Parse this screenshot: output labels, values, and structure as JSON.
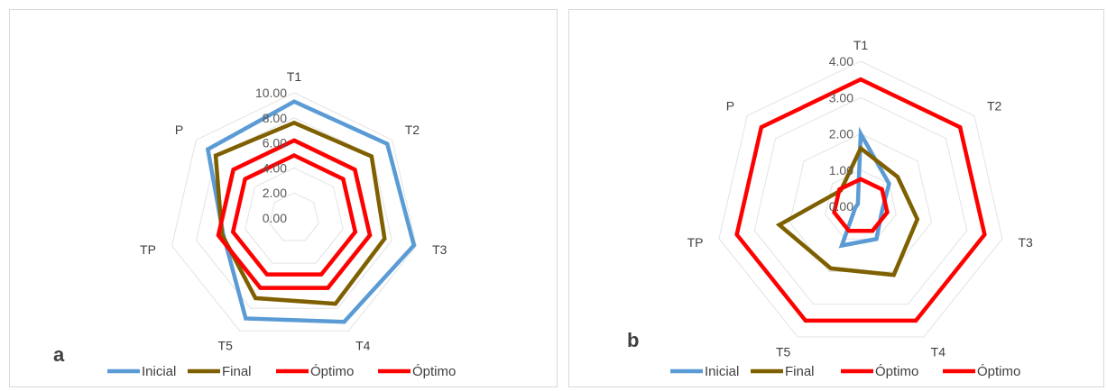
{
  "colors": {
    "inicial": "#5B9BD5",
    "final": "#7F6000",
    "optimo": "#FF0000",
    "grid": "#e3e3e3"
  },
  "chart_data": [
    {
      "type": "radar",
      "panel_label": "a",
      "axes": [
        "T1",
        "T2",
        "T3",
        "T4",
        "T5",
        "TP",
        "P"
      ],
      "ticks": [
        "0.00",
        "2.00",
        "4.00",
        "6.00",
        "8.00",
        "10.00"
      ],
      "ylim": [
        0,
        10
      ],
      "grid": true,
      "legend_position": "bottom",
      "series": [
        {
          "name": "Inicial",
          "values": [
            9.3,
            9.5,
            9.8,
            9.2,
            8.9,
            5.8,
            8.8
          ]
        },
        {
          "name": "Final",
          "values": [
            7.6,
            7.9,
            7.4,
            7.6,
            7.1,
            5.9,
            8.0
          ]
        },
        {
          "name": "Óptimo",
          "values": [
            6.2,
            6.2,
            6.2,
            6.2,
            6.2,
            6.2,
            6.2
          ]
        },
        {
          "name": "Óptimo",
          "values": [
            5.0,
            5.0,
            5.0,
            5.0,
            5.0,
            5.0,
            5.0
          ]
        }
      ]
    },
    {
      "type": "radar",
      "panel_label": "b",
      "axes": [
        "T1",
        "T2",
        "T3",
        "T4",
        "T5",
        "TP",
        "P"
      ],
      "ticks": [
        "0.00",
        "1.00",
        "2.00",
        "3.00",
        "4.00"
      ],
      "ylim": [
        0,
        4
      ],
      "grid": true,
      "legend_position": "bottom",
      "series": [
        {
          "name": "Inicial",
          "values": [
            2.0,
            1.0,
            0.6,
            1.0,
            1.2,
            0.15,
            0.1
          ]
        },
        {
          "name": "Final",
          "values": [
            1.6,
            1.3,
            1.6,
            2.1,
            1.9,
            2.3,
            0.7
          ]
        },
        {
          "name": "Óptimo",
          "values": [
            3.5,
            3.5,
            3.5,
            3.5,
            3.5,
            3.5,
            3.5
          ]
        },
        {
          "name": "Óptimo",
          "values": [
            0.75,
            0.75,
            0.75,
            0.75,
            0.75,
            0.75,
            0.75
          ]
        }
      ]
    }
  ]
}
